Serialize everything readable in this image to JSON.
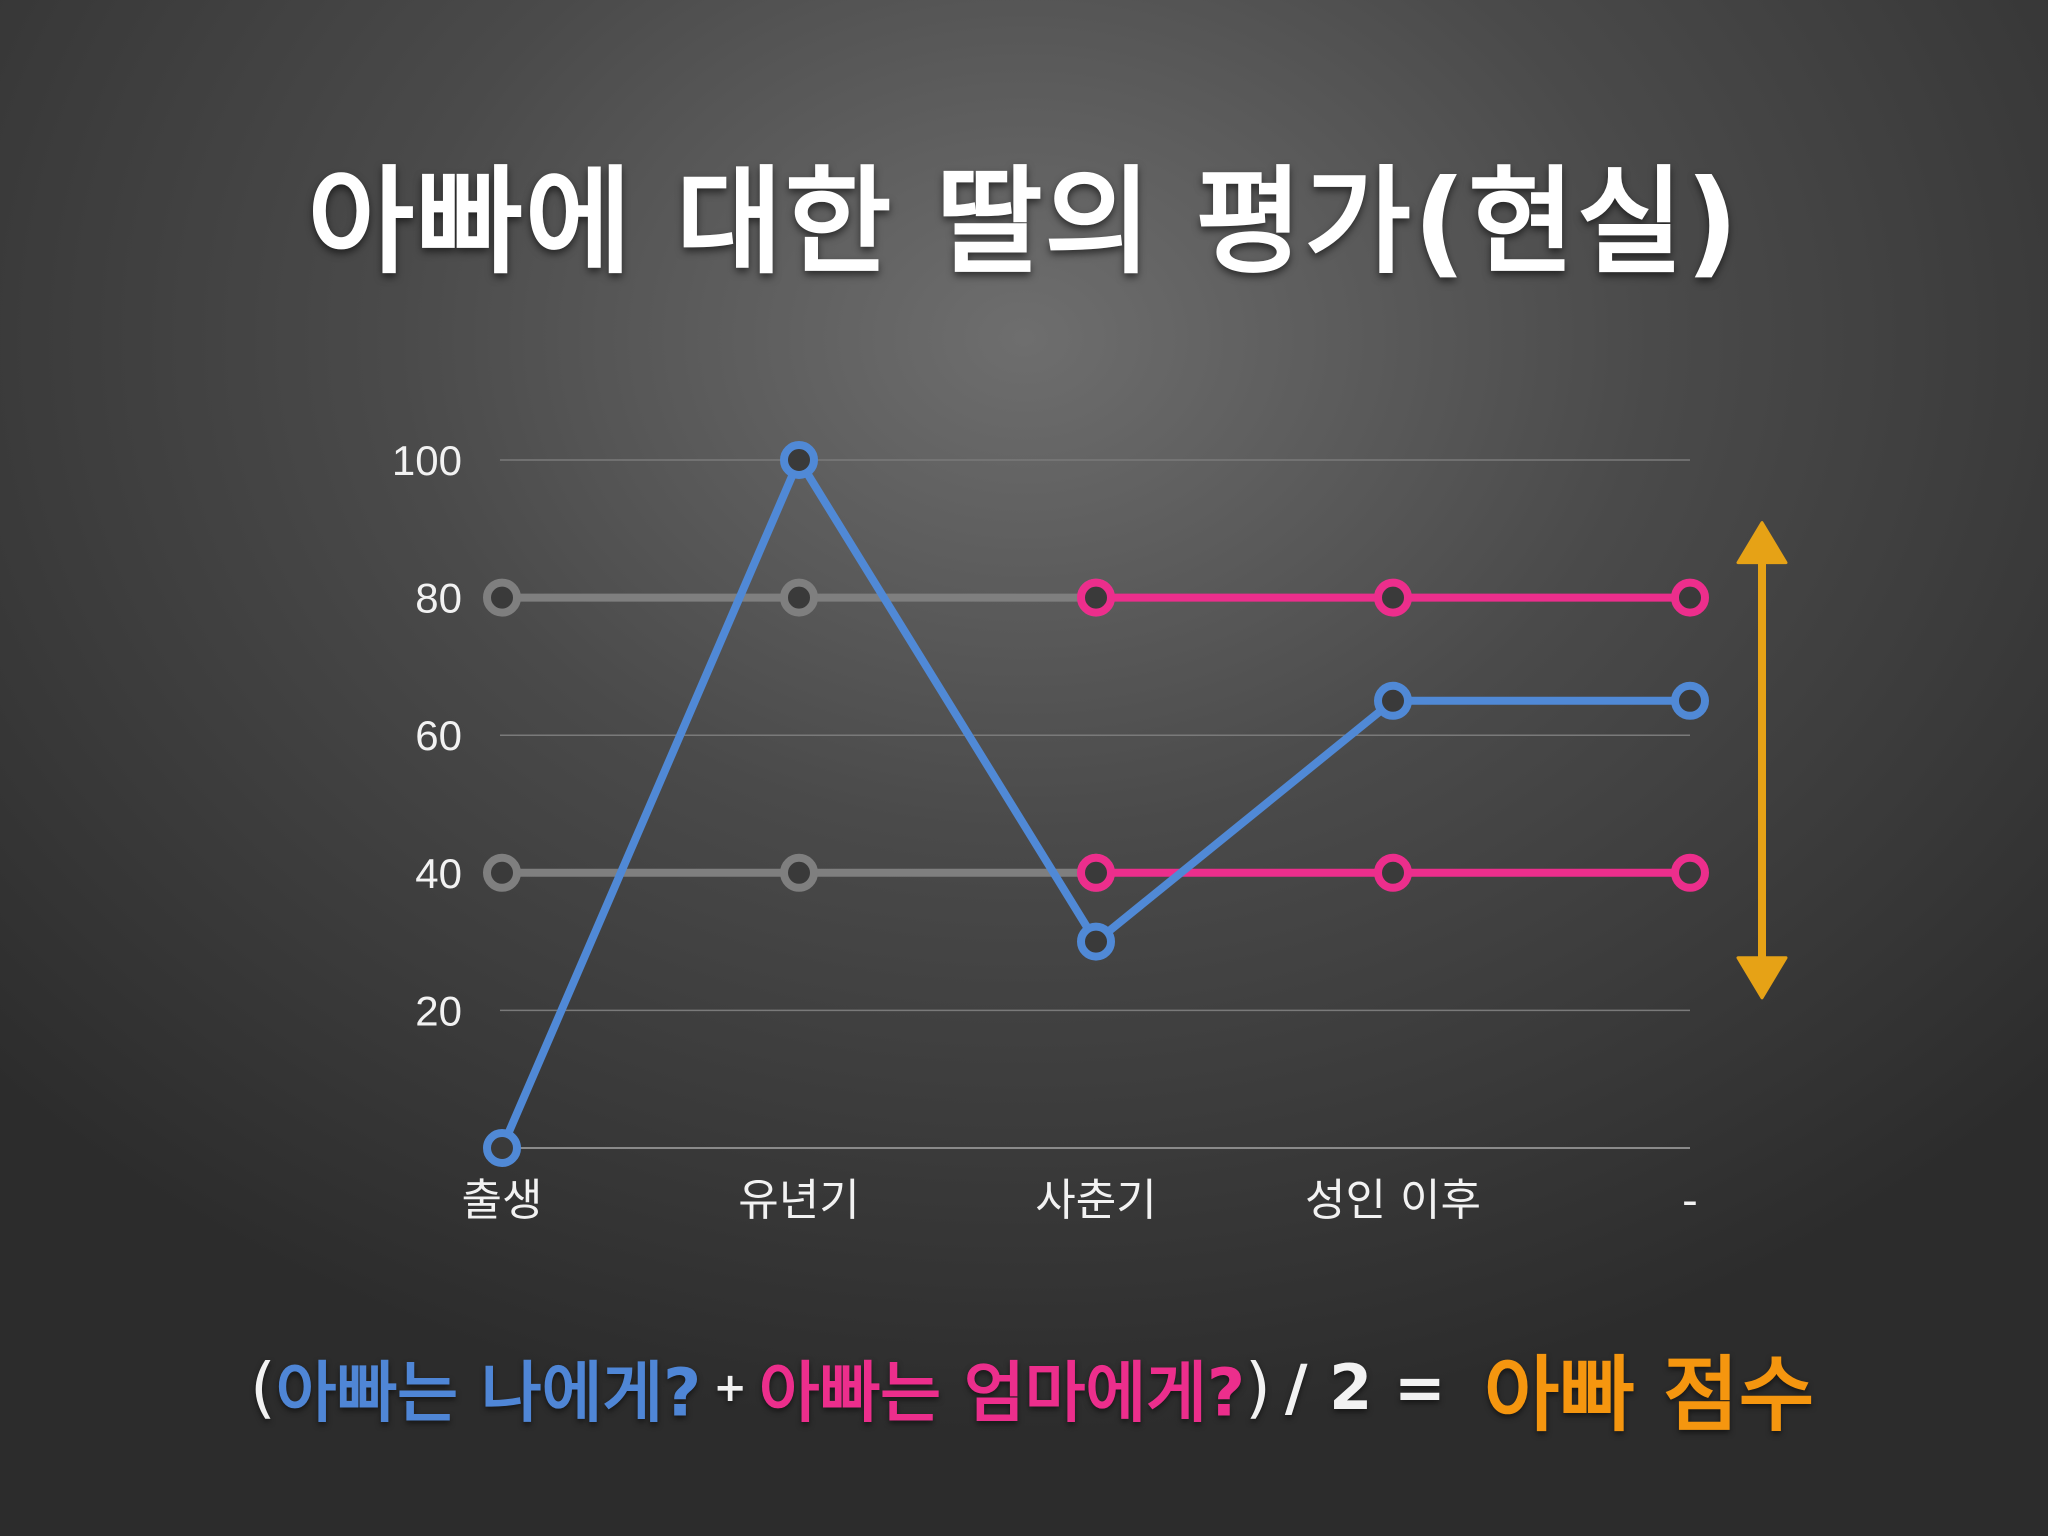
{
  "title": "아빠에 대한 딸의 평가(현실)",
  "chart_data": {
    "type": "line",
    "categories": [
      "출생",
      "유년기",
      "사춘기",
      "성인 이후",
      "-"
    ],
    "y_ticks": [
      20,
      40,
      60,
      80,
      100
    ],
    "ylim": [
      0,
      100
    ],
    "grid": true,
    "series": [
      {
        "color": "#7f7f7f",
        "values": [
          80,
          80,
          80,
          null,
          null
        ]
      },
      {
        "color": "#7f7f7f",
        "values": [
          40,
          40,
          40,
          null,
          null
        ]
      },
      {
        "color": "#ec2e8c",
        "values": [
          null,
          null,
          80,
          80,
          80
        ]
      },
      {
        "color": "#ec2e8c",
        "values": [
          null,
          null,
          40,
          40,
          40
        ]
      },
      {
        "color": "#5089d6",
        "values": [
          0,
          100,
          30,
          65,
          65
        ]
      }
    ],
    "annotation": {
      "type": "double-arrow",
      "color": "#e6a216",
      "from": 40,
      "to": 80
    }
  },
  "formula": {
    "open_paren": "(",
    "term1": "아빠는 나에게?",
    "plus": "+",
    "term2": "아빠는 엄마에게?",
    "close_paren": ")",
    "divide": "/ 2 =",
    "result": "아빠 점수"
  },
  "colors": {
    "blue": "#5089d6",
    "pink": "#ec2e8c",
    "gray": "#7f7f7f",
    "orange": "#f5960f",
    "arrow": "#e6a216"
  }
}
